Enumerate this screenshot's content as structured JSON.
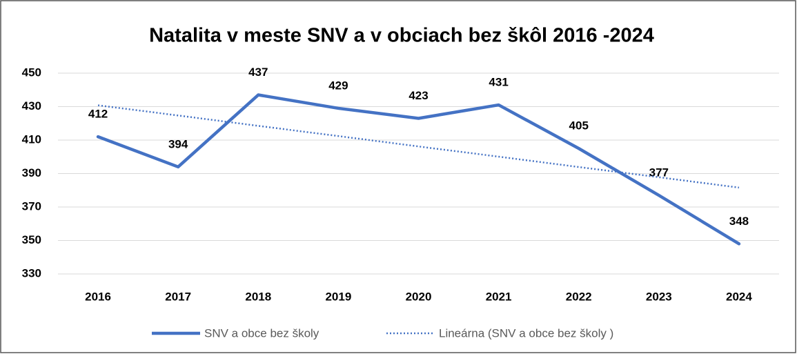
{
  "chart_data": {
    "type": "line",
    "title": "Natalita v meste SNV a v obciach bez škôl 2016 -2024",
    "categories": [
      "2016",
      "2017",
      "2018",
      "2019",
      "2020",
      "2021",
      "2022",
      "2023",
      "2024"
    ],
    "series": [
      {
        "name": "SNV a obce bez školy",
        "color": "#4472c4",
        "style": "solid",
        "data_labels": true,
        "values": [
          412,
          394,
          437,
          429,
          423,
          431,
          405,
          377,
          348
        ]
      },
      {
        "name": "Lineárna (SNV a obce bez školy )",
        "color": "#4472c4",
        "style": "dotted",
        "data_labels": false,
        "values": [
          430.8,
          424.7,
          418.5,
          412.4,
          406.2,
          400.1,
          393.9,
          387.8,
          381.6
        ]
      }
    ],
    "ylim": [
      330,
      450
    ],
    "yticks": [
      330,
      350,
      370,
      390,
      410,
      430,
      450
    ],
    "grid": true,
    "legend": "bottom"
  }
}
